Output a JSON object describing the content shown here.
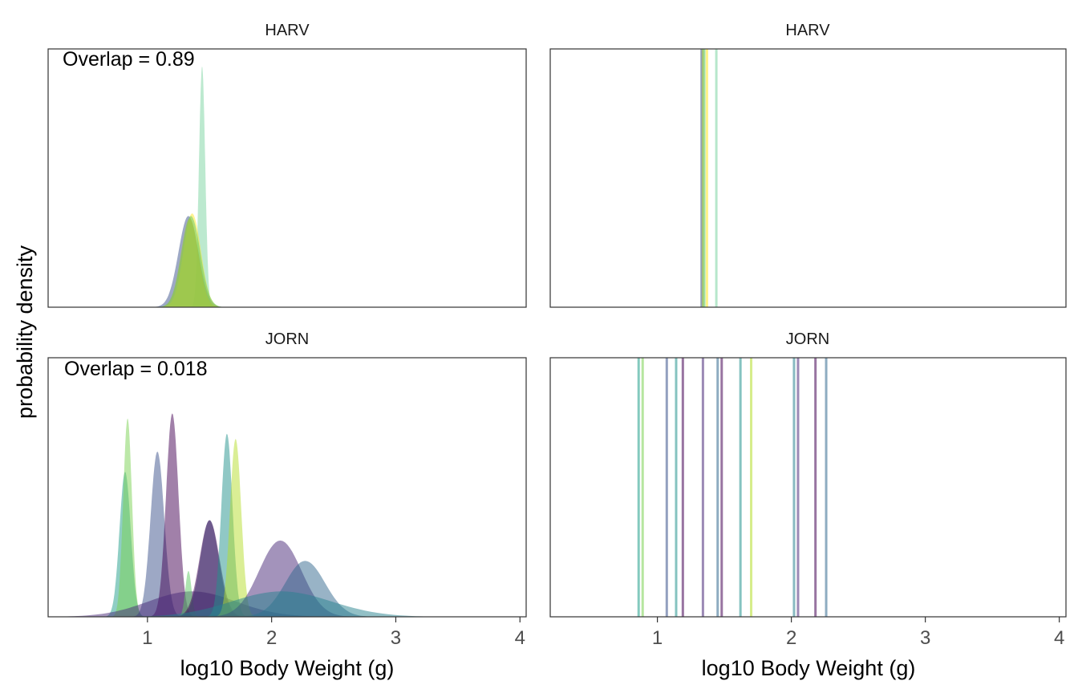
{
  "chart_data": {
    "type": "area",
    "ylabel": "probability density",
    "xlabel": "log10 Body Weight (g)",
    "xlim": [
      0.2,
      4.05
    ],
    "x_ticks": [
      1,
      2,
      3,
      4
    ],
    "y_ticks_shown": false,
    "grid": false,
    "legend": "none",
    "panels": [
      {
        "row": "HARV",
        "col": "density",
        "strip": "HARV",
        "annotation": "Overlap = 0.89",
        "series": [
          {
            "color": "#7ad4a0",
            "mean": 1.44,
            "sd": 0.025,
            "peak": 0.95
          },
          {
            "color": "#3b528b",
            "mean": 1.33,
            "sd": 0.08,
            "peak": 0.36
          },
          {
            "color": "#fde725",
            "mean": 1.36,
            "sd": 0.07,
            "peak": 0.37
          },
          {
            "color": "#5ec962",
            "mean": 1.35,
            "sd": 0.075,
            "peak": 0.36
          },
          {
            "color": "#a7c832",
            "mean": 1.34,
            "sd": 0.07,
            "peak": 0.35
          }
        ]
      },
      {
        "row": "HARV",
        "col": "means",
        "strip": "HARV",
        "lines": [
          {
            "x": 1.33,
            "color": "#3b528b"
          },
          {
            "x": 1.34,
            "color": "#a7c832"
          },
          {
            "x": 1.35,
            "color": "#5ec962"
          },
          {
            "x": 1.37,
            "color": "#fde725"
          },
          {
            "x": 1.44,
            "color": "#7ad4a0"
          }
        ]
      },
      {
        "row": "JORN",
        "col": "density",
        "strip": "JORN",
        "annotation": "Overlap = 0.018",
        "series": [
          {
            "color": "#1f9e89",
            "mean": 0.82,
            "sd": 0.045,
            "peak": 0.57
          },
          {
            "color": "#7ad151",
            "mean": 0.84,
            "sd": 0.035,
            "peak": 0.78
          },
          {
            "color": "#3b528b",
            "mean": 1.08,
            "sd": 0.055,
            "peak": 0.65
          },
          {
            "color": "#440154",
            "mean": 1.2,
            "sd": 0.05,
            "peak": 0.8
          },
          {
            "color": "#482878",
            "mean": 1.36,
            "sd": 0.35,
            "peak": 0.1
          },
          {
            "color": "#5ec962",
            "mean": 1.33,
            "sd": 0.025,
            "peak": 0.18
          },
          {
            "color": "#31688e",
            "mean": 1.5,
            "sd": 0.075,
            "peak": 0.38
          },
          {
            "color": "#440154",
            "mean": 1.5,
            "sd": 0.08,
            "peak": 0.38
          },
          {
            "color": "#21918c",
            "mean": 1.64,
            "sd": 0.045,
            "peak": 0.72
          },
          {
            "color": "#b5de2b",
            "mean": 1.71,
            "sd": 0.045,
            "peak": 0.7
          },
          {
            "color": "#482878",
            "mean": 2.07,
            "sd": 0.17,
            "peak": 0.3
          },
          {
            "color": "#31688e",
            "mean": 2.27,
            "sd": 0.16,
            "peak": 0.22
          },
          {
            "color": "#26828e",
            "mean": 2.08,
            "sd": 0.4,
            "peak": 0.1
          }
        ]
      },
      {
        "row": "JORN",
        "col": "means",
        "strip": "JORN",
        "lines": [
          {
            "x": 0.86,
            "color": "#1f9e89"
          },
          {
            "x": 0.89,
            "color": "#7ad151"
          },
          {
            "x": 1.07,
            "color": "#3b528b"
          },
          {
            "x": 1.14,
            "color": "#21918c"
          },
          {
            "x": 1.19,
            "color": "#440154"
          },
          {
            "x": 1.34,
            "color": "#482878"
          },
          {
            "x": 1.45,
            "color": "#31688e"
          },
          {
            "x": 1.48,
            "color": "#440154"
          },
          {
            "x": 1.62,
            "color": "#21918c"
          },
          {
            "x": 1.7,
            "color": "#b5de2b"
          },
          {
            "x": 2.02,
            "color": "#26828e"
          },
          {
            "x": 2.05,
            "color": "#482878"
          },
          {
            "x": 2.18,
            "color": "#440154"
          },
          {
            "x": 2.26,
            "color": "#31688e"
          }
        ]
      }
    ]
  }
}
